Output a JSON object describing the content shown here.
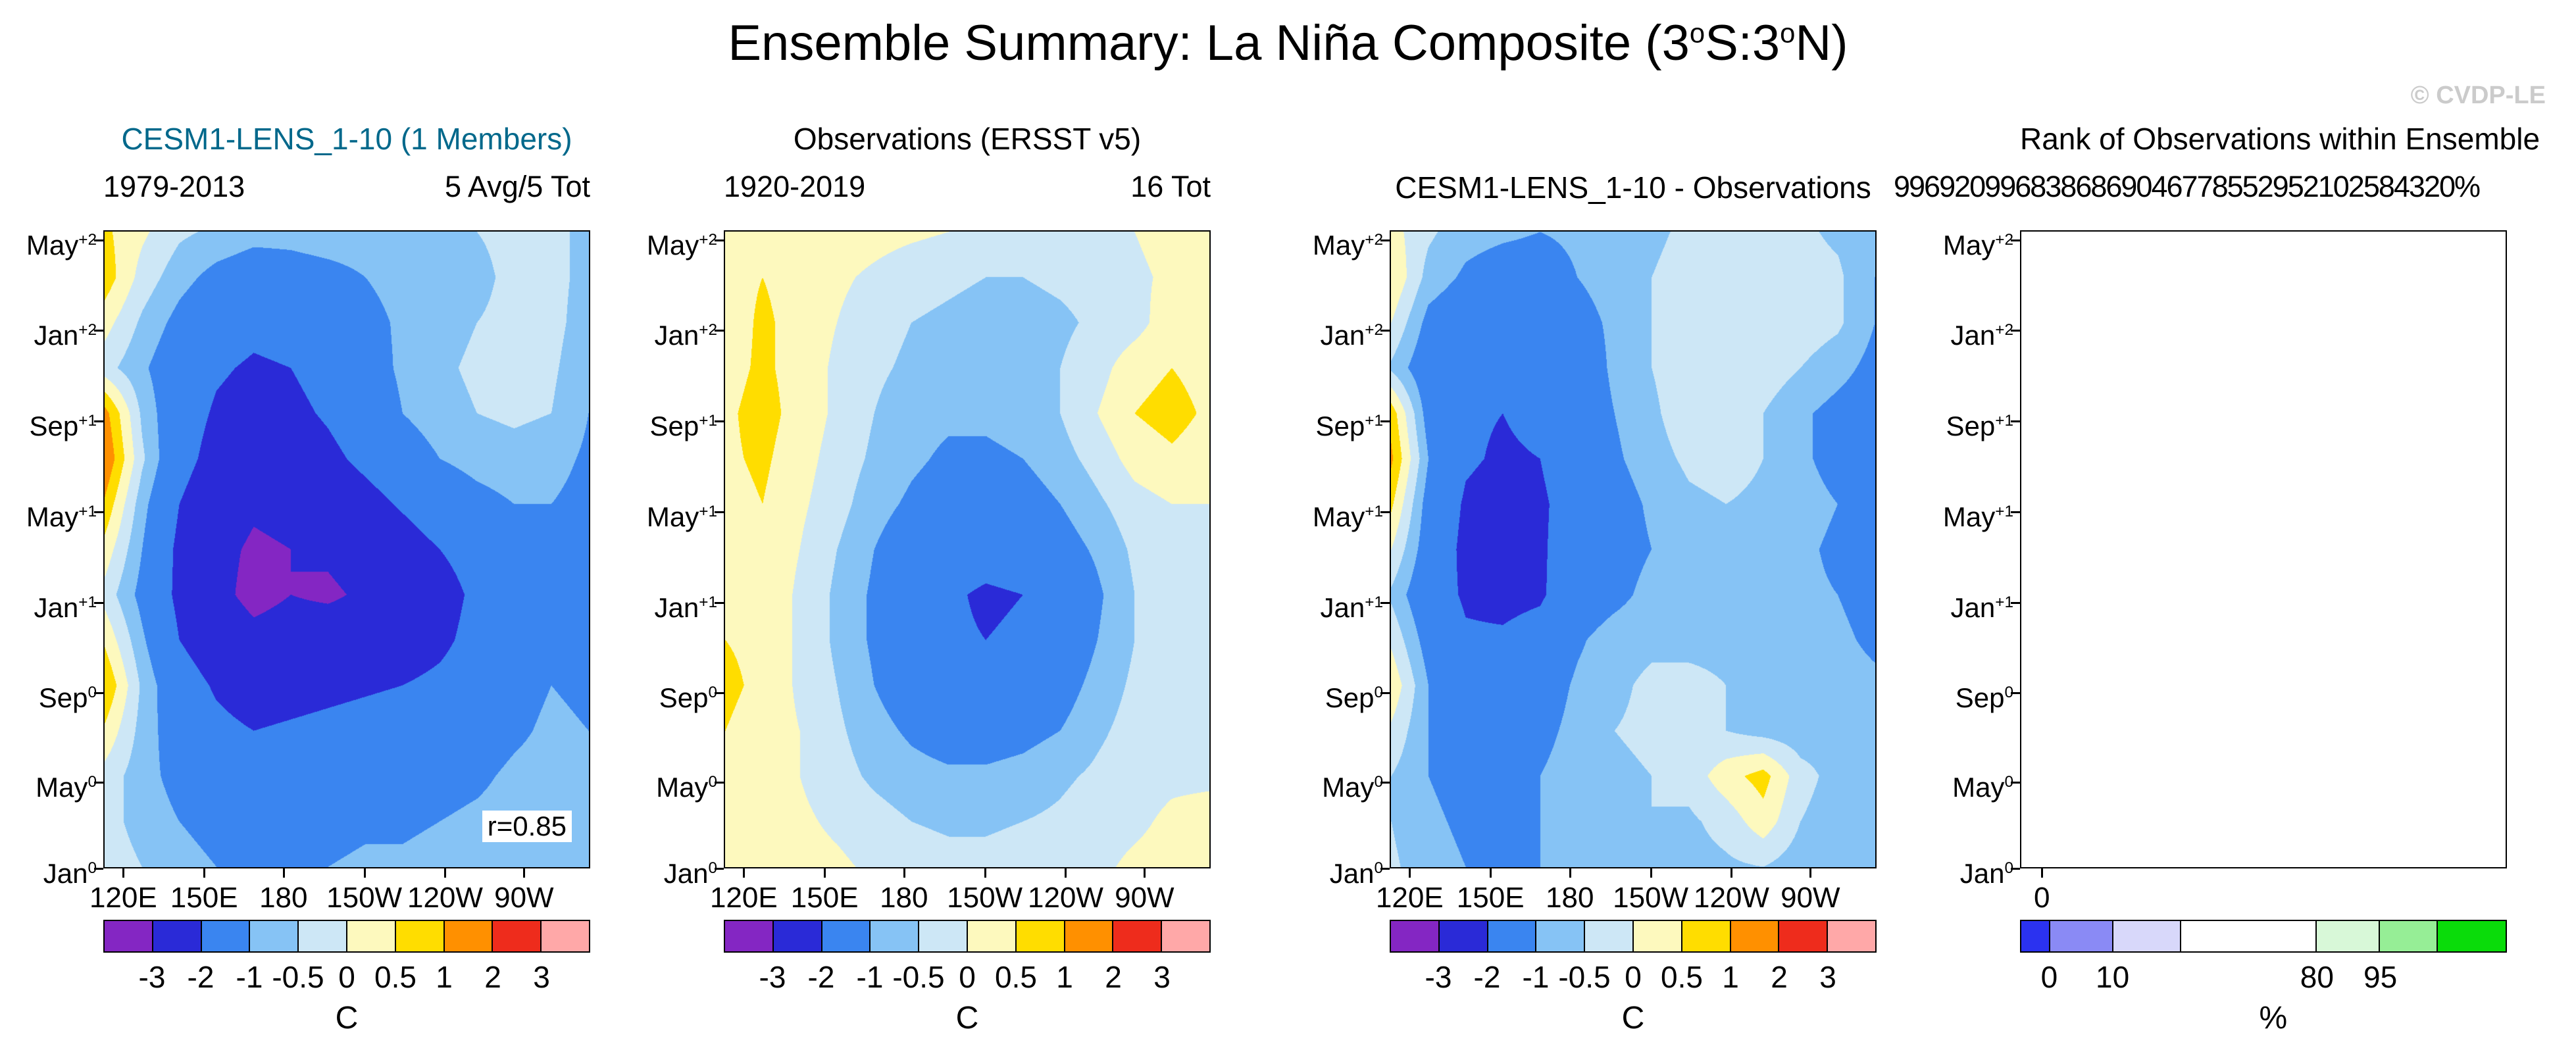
{
  "title_parts": [
    {
      "t": "Ensemble Summary: La Niña Composite (3"
    },
    {
      "t": "o",
      "sup": true
    },
    {
      "t": "S:3"
    },
    {
      "t": "o",
      "sup": true
    },
    {
      "t": "N)"
    }
  ],
  "watermark": "© CVDP-LE",
  "colors": {
    "model_title": "#00688B",
    "watermark": "#CBCBCB",
    "axis": "#000000"
  },
  "axes": {
    "x_tick_labels": [
      "120E",
      "150E",
      "180",
      "150W",
      "120W",
      "90W"
    ],
    "y_tick_labels": [
      {
        "base": "May",
        "sup": "+2"
      },
      {
        "base": "Jan",
        "sup": "+2"
      },
      {
        "base": "Sep",
        "sup": "+1"
      },
      {
        "base": "May",
        "sup": "+1"
      },
      {
        "base": "Jan",
        "sup": "+1"
      },
      {
        "base": "Sep",
        "sup": "0"
      },
      {
        "base": "May",
        "sup": "0"
      },
      {
        "base": "Jan",
        "sup": "0"
      }
    ]
  },
  "anomaly_colorbar": {
    "levels": [
      -3,
      -2,
      -1,
      -0.5,
      0,
      0.5,
      1,
      2,
      3
    ],
    "tick_labels": [
      "-3",
      "-2",
      "-1",
      "-0.5",
      "0",
      "0.5",
      "1",
      "2",
      "3"
    ],
    "colors": [
      "#8426C3",
      "#2A2AD7",
      "#3A85F0",
      "#86C3F5",
      "#CDE7F6",
      "#FDF9BE",
      "#FFDD00",
      "#FF9000",
      "#EE2C1C",
      "#FFA8A8"
    ],
    "units": "C"
  },
  "rank_colorbar": {
    "colors": [
      "#2B32F0",
      "#8A8AF5",
      "#D8D8FA",
      "#FFFFFF",
      "#D8F8D8",
      "#96EE96",
      "#0ADC0A"
    ],
    "widths_pct": [
      6,
      13,
      14,
      28,
      13,
      12,
      14
    ],
    "ticks": [
      {
        "label": "0",
        "pos_pct": 6
      },
      {
        "label": "10",
        "pos_pct": 19
      },
      {
        "label": "80",
        "pos_pct": 61
      },
      {
        "label": "95",
        "pos_pct": 74
      }
    ],
    "units": "%"
  },
  "panels": [
    {
      "id": "model",
      "title": "CESM1-LENS_1-10 (1 Members)",
      "title_color": "#00688B",
      "title_row": 1,
      "subtitle_left": "1979-2013",
      "subtitle_right": "5 Avg/5 Tot",
      "colorbar": "anomaly",
      "chart_index": 0,
      "show_x_ticks": true
    },
    {
      "id": "observations",
      "title": "Observations (ERSST v5)",
      "title_row": 1,
      "subtitle_left": "1920-2019",
      "subtitle_right": "16 Tot",
      "colorbar": "anomaly",
      "chart_index": 1,
      "show_x_ticks": true
    },
    {
      "id": "difference",
      "title": "CESM1-LENS_1-10 - Observations",
      "title_row": 2,
      "colorbar": "anomaly",
      "chart_index": 2,
      "show_x_ticks": true
    },
    {
      "id": "rank",
      "title": "Rank of Observations within Ensemble",
      "title_row": 1,
      "overprint": "9969209968386869046778552952102584320%",
      "colorbar": "rank",
      "chart_index": 3,
      "show_x_ticks": false,
      "extra_x_label": "0"
    }
  ],
  "chart_data": [
    {
      "type": "heatmap",
      "title": "CESM1-LENS_1-10 (1 Members)",
      "period": "1979-2013",
      "totals_label": "5 Avg/5 Tot",
      "annotation": "r=0.85",
      "units": "C",
      "levels": [
        -3,
        -2,
        -1,
        -0.5,
        0,
        0.5,
        1,
        2,
        3
      ],
      "x_tick_labels": [
        "120E",
        "150E",
        "180",
        "150W",
        "120W",
        "90W"
      ],
      "y_tick_labels": [
        "May+2",
        "Jan+2",
        "Sep+1",
        "May+1",
        "Jan+1",
        "Sep0",
        "May0",
        "Jan0"
      ],
      "values_orientation": "rows top (May+2) to bottom (Jan0), columns west (120E) to east (90W)",
      "values": [
        [
          0.6,
          0.1,
          -0.4,
          -0.6,
          -0.8,
          -0.8,
          -0.7,
          -0.7,
          -0.6,
          -0.6,
          -0.5,
          -0.4,
          -0.4,
          -0.6
        ],
        [
          0.8,
          -0.2,
          -0.8,
          -1.2,
          -1.4,
          -1.3,
          -1.2,
          -1.0,
          -0.8,
          -0.7,
          -0.6,
          -0.4,
          -0.3,
          -0.7
        ],
        [
          0.2,
          -0.6,
          -1.2,
          -1.6,
          -1.8,
          -1.7,
          -1.5,
          -1.2,
          -0.9,
          -0.7,
          -0.5,
          -0.4,
          -0.3,
          -0.8
        ],
        [
          -0.3,
          -0.9,
          -1.5,
          -1.9,
          -2.1,
          -2.0,
          -1.7,
          -1.3,
          -0.9,
          -0.6,
          -0.4,
          -0.3,
          -0.4,
          -0.9
        ],
        [
          1.2,
          -0.6,
          -1.6,
          -2.1,
          -2.3,
          -2.2,
          -1.9,
          -1.5,
          -1.0,
          -0.7,
          -0.5,
          -0.4,
          -0.5,
          -1.0
        ],
        [
          1.5,
          -0.4,
          -1.7,
          -2.3,
          -2.6,
          -2.5,
          -2.2,
          -1.8,
          -1.4,
          -1.0,
          -0.8,
          -0.7,
          -0.8,
          -1.1
        ],
        [
          0.9,
          -0.8,
          -2.0,
          -2.6,
          -2.9,
          -2.8,
          -2.6,
          -2.3,
          -1.9,
          -1.5,
          -1.2,
          -1.0,
          -1.0,
          -1.2
        ],
        [
          0.3,
          -1.0,
          -2.2,
          -2.8,
          -3.1,
          -3.0,
          -2.9,
          -2.7,
          -2.4,
          -2.0,
          -1.6,
          -1.3,
          -1.2,
          -1.3
        ],
        [
          -0.2,
          -1.2,
          -2.2,
          -2.8,
          -3.2,
          -3.0,
          -3.1,
          -2.9,
          -3.0,
          -2.4,
          -1.8,
          -1.4,
          -1.2,
          -1.3
        ],
        [
          0.4,
          -0.9,
          -2.0,
          -2.5,
          -2.8,
          -2.7,
          -2.6,
          -2.6,
          -2.5,
          -2.2,
          -1.7,
          -1.3,
          -1.1,
          -1.2
        ],
        [
          1.0,
          -0.6,
          -1.6,
          -2.1,
          -2.4,
          -2.3,
          -2.2,
          -2.1,
          -2.0,
          -1.8,
          -1.5,
          -1.2,
          -1.0,
          -1.1
        ],
        [
          0.4,
          -0.7,
          -1.4,
          -1.8,
          -2.0,
          -1.9,
          -1.8,
          -1.7,
          -1.6,
          -1.5,
          -1.3,
          -1.1,
          -0.9,
          -1.0
        ],
        [
          -0.2,
          -0.8,
          -1.2,
          -1.5,
          -1.6,
          -1.5,
          -1.5,
          -1.4,
          -1.3,
          -1.2,
          -1.1,
          -0.9,
          -0.8,
          -0.9
        ],
        [
          -0.3,
          -0.7,
          -1.0,
          -1.2,
          -1.3,
          -1.2,
          -1.2,
          -1.1,
          -1.1,
          -1.0,
          -0.9,
          -0.8,
          -0.7,
          -0.8
        ],
        [
          -0.2,
          -0.5,
          -0.8,
          -1.0,
          -1.1,
          -1.0,
          -1.0,
          -0.9,
          -0.9,
          -0.8,
          -0.8,
          -0.7,
          -0.6,
          -0.7
        ]
      ]
    },
    {
      "type": "heatmap",
      "title": "Observations (ERSST v5)",
      "period": "1920-2019",
      "totals_label": "16 Tot",
      "units": "C",
      "levels": [
        -3,
        -2,
        -1,
        -0.5,
        0,
        0.5,
        1,
        2,
        3
      ],
      "x_tick_labels": [
        "120E",
        "150E",
        "180",
        "150W",
        "120W",
        "90W"
      ],
      "y_tick_labels": [
        "May+2",
        "Jan+2",
        "Sep+1",
        "May+1",
        "Jan+1",
        "Sep0",
        "May0",
        "Jan0"
      ],
      "values_orientation": "rows top (May+2) to bottom (Jan0), columns west (120E) to east (90W)",
      "values": [
        [
          0.4,
          0.5,
          0.4,
          0.3,
          0.2,
          0.1,
          0.0,
          -0.1,
          -0.2,
          -0.2,
          -0.1,
          0.0,
          0.2,
          0.3
        ],
        [
          0.3,
          0.5,
          0.3,
          0.1,
          -0.1,
          -0.3,
          -0.4,
          -0.5,
          -0.5,
          -0.4,
          -0.3,
          -0.1,
          0.1,
          0.3
        ],
        [
          0.2,
          0.6,
          0.3,
          0.0,
          -0.3,
          -0.5,
          -0.6,
          -0.7,
          -0.7,
          -0.6,
          -0.4,
          -0.2,
          0.3,
          0.2
        ],
        [
          0.3,
          0.6,
          0.3,
          -0.1,
          -0.4,
          -0.6,
          -0.8,
          -0.8,
          -0.7,
          -0.5,
          -0.2,
          0.3,
          0.5,
          0.3
        ],
        [
          0.4,
          0.7,
          0.3,
          -0.1,
          -0.5,
          -0.8,
          -0.9,
          -0.9,
          -0.8,
          -0.5,
          0.0,
          0.5,
          0.7,
          0.4
        ],
        [
          0.4,
          0.6,
          0.2,
          -0.2,
          -0.6,
          -0.9,
          -1.1,
          -1.1,
          -1.0,
          -0.7,
          -0.3,
          0.2,
          0.4,
          0.2
        ],
        [
          0.3,
          0.5,
          0.1,
          -0.3,
          -0.8,
          -1.1,
          -1.3,
          -1.4,
          -1.3,
          -1.0,
          -0.6,
          -0.2,
          0.0,
          0.0
        ],
        [
          0.3,
          0.4,
          0.0,
          -0.5,
          -1.0,
          -1.4,
          -1.6,
          -1.7,
          -1.6,
          -1.3,
          -0.9,
          -0.4,
          -0.1,
          -0.1
        ],
        [
          0.4,
          0.4,
          -0.1,
          -0.6,
          -1.1,
          -1.5,
          -1.9,
          -2.1,
          -2.0,
          -1.7,
          -1.1,
          -0.5,
          -0.2,
          -0.1
        ],
        [
          0.5,
          0.4,
          -0.1,
          -0.6,
          -1.1,
          -1.6,
          -1.9,
          -2.0,
          -1.9,
          -1.6,
          -1.0,
          -0.5,
          -0.2,
          -0.1
        ],
        [
          0.6,
          0.4,
          -0.1,
          -0.5,
          -1.0,
          -1.4,
          -1.6,
          -1.7,
          -1.6,
          -1.3,
          -0.8,
          -0.4,
          -0.2,
          -0.2
        ],
        [
          0.5,
          0.3,
          0.0,
          -0.4,
          -0.8,
          -1.1,
          -1.3,
          -1.3,
          -1.2,
          -1.0,
          -0.6,
          -0.3,
          -0.2,
          -0.2
        ],
        [
          0.3,
          0.2,
          0.0,
          -0.3,
          -0.6,
          -0.8,
          -0.9,
          -0.9,
          -0.8,
          -0.6,
          -0.4,
          -0.2,
          -0.1,
          -0.1
        ],
        [
          0.2,
          0.2,
          0.1,
          -0.1,
          -0.3,
          -0.5,
          -0.6,
          -0.6,
          -0.5,
          -0.4,
          -0.2,
          -0.1,
          0.1,
          0.2
        ],
        [
          0.2,
          0.3,
          0.2,
          0.1,
          -0.1,
          -0.2,
          -0.3,
          -0.3,
          -0.2,
          -0.2,
          -0.1,
          0.1,
          0.2,
          0.3
        ]
      ]
    },
    {
      "type": "heatmap",
      "title": "CESM1-LENS_1-10 - Observations",
      "units": "C",
      "levels": [
        -3,
        -2,
        -1,
        -0.5,
        0,
        0.5,
        1,
        2,
        3
      ],
      "x_tick_labels": [
        "120E",
        "150E",
        "180",
        "150W",
        "120W",
        "90W"
      ],
      "y_tick_labels": [
        "May+2",
        "Jan+2",
        "Sep+1",
        "May+1",
        "Jan+1",
        "Sep0",
        "May0",
        "Jan0"
      ],
      "values_orientation": "rows top (May+2) to bottom (Jan0), columns west (120E) to east (90W)",
      "values": [
        [
          0.2,
          -0.4,
          -0.8,
          -0.9,
          -1.0,
          -0.9,
          -0.7,
          -0.6,
          -0.4,
          -0.4,
          -0.4,
          -0.4,
          -0.6,
          -0.9
        ],
        [
          0.5,
          -0.7,
          -1.1,
          -1.3,
          -1.3,
          -1.0,
          -0.8,
          -0.5,
          -0.3,
          -0.3,
          -0.3,
          -0.3,
          -0.4,
          -1.0
        ],
        [
          0.0,
          -1.2,
          -1.5,
          -1.6,
          -1.5,
          -1.2,
          -0.9,
          -0.5,
          -0.2,
          -0.1,
          -0.1,
          -0.2,
          -0.4,
          -1.0
        ],
        [
          -0.6,
          -1.5,
          -1.8,
          -1.8,
          -1.7,
          -1.4,
          -0.9,
          -0.5,
          -0.2,
          -0.1,
          -0.2,
          -0.5,
          -0.8,
          -1.2
        ],
        [
          0.8,
          -1.3,
          -1.9,
          -2.0,
          -1.8,
          -1.4,
          -1.0,
          -0.6,
          -0.2,
          -0.2,
          -0.5,
          -0.9,
          -1.2,
          -1.4
        ],
        [
          1.1,
          -1.0,
          -1.9,
          -2.1,
          -2.0,
          -1.6,
          -1.1,
          -0.7,
          -0.4,
          -0.3,
          -0.5,
          -0.9,
          -1.2,
          -1.3
        ],
        [
          0.6,
          -1.3,
          -2.1,
          -2.3,
          -2.1,
          -1.7,
          -1.3,
          -0.9,
          -0.6,
          -0.5,
          -0.6,
          -0.8,
          -1.0,
          -1.2
        ],
        [
          0.0,
          -1.4,
          -2.2,
          -2.3,
          -2.1,
          -1.6,
          -1.3,
          -1.0,
          -0.8,
          -0.7,
          -0.7,
          -0.9,
          -1.1,
          -1.2
        ],
        [
          -0.6,
          -1.6,
          -2.1,
          -2.2,
          -2.1,
          -1.5,
          -1.2,
          -0.8,
          -1.0,
          -0.7,
          -0.7,
          -0.9,
          -1.0,
          -1.2
        ],
        [
          -0.1,
          -1.3,
          -1.9,
          -1.9,
          -1.7,
          -1.1,
          -0.7,
          -0.6,
          -0.6,
          -0.6,
          -0.7,
          -0.8,
          -0.9,
          -1.1
        ],
        [
          0.4,
          -1.0,
          -1.5,
          -1.6,
          -1.4,
          -0.9,
          -0.6,
          -0.4,
          -0.4,
          -0.5,
          -0.7,
          -0.8,
          -0.8,
          -0.9
        ],
        [
          -0.1,
          -1.0,
          -1.4,
          -1.4,
          -1.2,
          -0.8,
          -0.5,
          -0.4,
          -0.4,
          -0.5,
          -0.7,
          -0.8,
          -0.7,
          -0.8
        ],
        [
          -0.5,
          -1.0,
          -1.2,
          -1.2,
          -1.0,
          -0.7,
          -0.6,
          -0.5,
          -0.3,
          0.3,
          0.7,
          -0.3,
          -0.7,
          -0.8
        ],
        [
          -0.5,
          -0.9,
          -1.1,
          -1.1,
          -1.0,
          -0.7,
          -0.6,
          -0.5,
          -0.6,
          -0.3,
          0.3,
          -0.5,
          -0.8,
          -1.0
        ],
        [
          -0.4,
          -0.8,
          -1.0,
          -1.1,
          -1.0,
          -0.8,
          -0.7,
          -0.6,
          -0.7,
          -0.6,
          -0.5,
          -0.8,
          -0.7,
          -0.9
        ]
      ]
    },
    {
      "type": "heatmap",
      "title": "Rank of Observations within Ensemble",
      "overprint_text": "9969209968386869046778552952102584320%",
      "units": "%",
      "x_tick_labels": [
        "0"
      ],
      "y_tick_labels": [
        "May+2",
        "Jan+2",
        "Sep+1",
        "May+1",
        "Jan+1",
        "Sep0",
        "May0",
        "Jan0"
      ],
      "colorbar_tick_labels": [
        "0",
        "10",
        "80",
        "95"
      ],
      "values": null
    }
  ]
}
